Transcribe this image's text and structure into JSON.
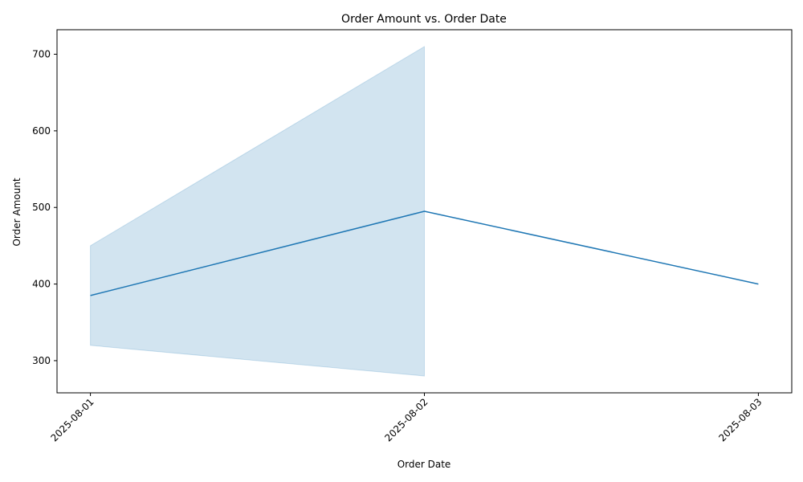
{
  "chart_data": {
    "type": "line",
    "title": "Order Amount vs. Order Date",
    "xlabel": "Order Date",
    "ylabel": "Order Amount",
    "x": [
      "2025-08-01",
      "2025-08-02",
      "2025-08-03"
    ],
    "series": [
      {
        "values": [
          385,
          495,
          400
        ],
        "band_lower": [
          320,
          280,
          null
        ],
        "band_upper": [
          450,
          710,
          null
        ]
      }
    ],
    "yticks": [
      300,
      400,
      500,
      600,
      700
    ],
    "ylim": [
      258,
      732
    ],
    "xlim": [
      "2025-07-31T21:36",
      "2025-08-03T02:24"
    ],
    "grid": false,
    "line_color": "#1f77b4",
    "band_color": "#1f77b4"
  }
}
